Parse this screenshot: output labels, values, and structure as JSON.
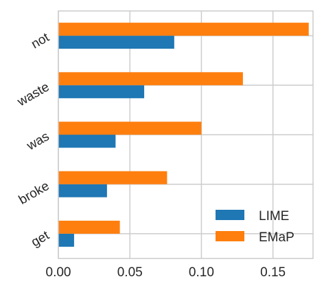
{
  "chart_data": {
    "type": "bar",
    "orientation": "horizontal",
    "categories": [
      "not",
      "waste",
      "was",
      "broke",
      "get"
    ],
    "series": [
      {
        "name": "LIME",
        "values": [
          0.081,
          0.06,
          0.04,
          0.034,
          0.011
        ],
        "color": "#1f77b4"
      },
      {
        "name": "EMaP",
        "values": [
          0.175,
          0.129,
          0.1,
          0.076,
          0.043
        ],
        "color": "#ff7f0e"
      }
    ],
    "title": "",
    "xlabel": "",
    "ylabel": "",
    "xlim": [
      0,
      0.178
    ],
    "xticks": [
      0.0,
      0.05,
      0.1,
      0.15
    ],
    "xtick_labels": [
      "0.00",
      "0.05",
      "0.10",
      "0.15"
    ],
    "grid": true,
    "legend_position": "lower-right",
    "colors": {
      "grid": "#cccccc",
      "axes_edge": "#cccccc",
      "text": "#262626",
      "background": "#ffffff"
    }
  }
}
